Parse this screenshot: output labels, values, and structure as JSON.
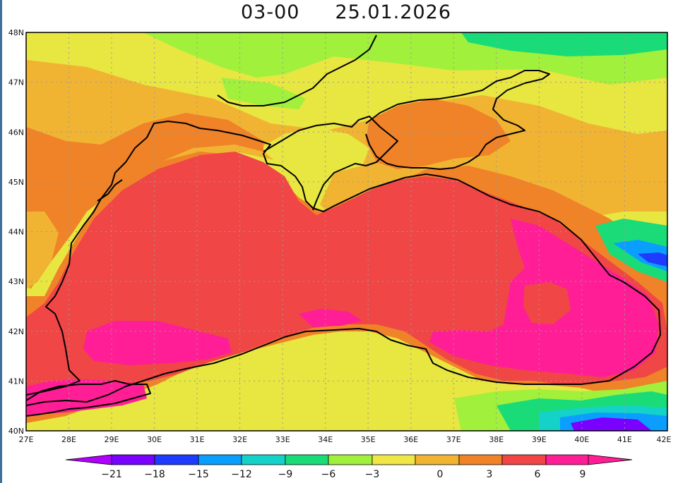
{
  "title": {
    "time": "03-00",
    "date": "25.01.2026"
  },
  "lat_labels": [
    "48N",
    "47N",
    "46N",
    "45N",
    "44N",
    "43N",
    "42N",
    "41N",
    "40N"
  ],
  "lon_labels": [
    "27E",
    "28E",
    "29E",
    "30E",
    "31E",
    "32E",
    "33E",
    "34E",
    "35E",
    "36E",
    "37E",
    "38E",
    "39E",
    "40E",
    "41E",
    "42E"
  ],
  "colorbar": {
    "labels": [
      "−21",
      "−18",
      "−15",
      "−12",
      "−9",
      "−6",
      "−3",
      "0",
      "3",
      "6",
      "9"
    ],
    "colors": [
      "#b000ff",
      "#7a00ff",
      "#1e3cff",
      "#0a9fff",
      "#14d2c8",
      "#19dc78",
      "#a0f03c",
      "#f0e646",
      "#f0b432",
      "#f08228",
      "#f04646",
      "#ff1e96"
    ]
  },
  "colors": {
    "land_far": "#e8e641",
    "steppe": "#f0b432",
    "warm": "#f08228",
    "sea": "#f04646",
    "hot": "#ff1e96",
    "mild": "#a0f03c",
    "cool": "#19dc78",
    "cold": "#14d2c8",
    "colder": "#0a9fff",
    "coldest": "#1e3cff",
    "deep": "#7a00ff"
  }
}
